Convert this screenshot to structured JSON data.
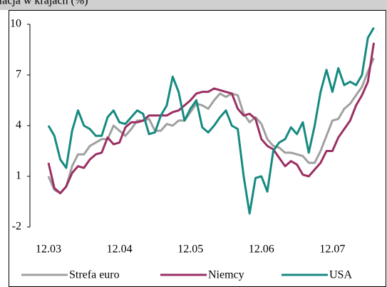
{
  "chart_data": {
    "type": "line",
    "title": "Inflacja w krajach (%)",
    "categories": [
      "12.03",
      null,
      null,
      null,
      null,
      null,
      null,
      null,
      null,
      null,
      null,
      null,
      "12.04",
      null,
      null,
      null,
      null,
      null,
      null,
      null,
      null,
      null,
      null,
      null,
      "12.05",
      null,
      null,
      null,
      null,
      null,
      null,
      null,
      null,
      null,
      null,
      null,
      "12.06",
      null,
      null,
      null,
      null,
      null,
      null,
      null,
      null,
      null,
      null,
      null,
      "12.07",
      null,
      null,
      null,
      null,
      null,
      null,
      null
    ],
    "series": [
      {
        "name": "Strefa euro",
        "color": "#a0a0a0",
        "values": [
          1.0,
          0.2,
          0.0,
          0.4,
          1.6,
          2.3,
          2.3,
          2.8,
          3.0,
          3.2,
          3.2,
          4.0,
          3.7,
          3.4,
          3.8,
          4.3,
          4.3,
          4.4,
          3.7,
          3.7,
          4.1,
          4.0,
          4.3,
          4.3,
          4.8,
          5.3,
          5.2,
          5.0,
          5.5,
          5.9,
          5.7,
          5.9,
          5.8,
          4.7,
          4.2,
          4.5,
          4.1,
          3.2,
          2.8,
          2.7,
          2.4,
          2.4,
          2.3,
          2.2,
          1.8,
          1.8,
          2.5,
          3.4,
          4.3,
          4.4,
          5.0,
          5.3,
          5.8,
          6.3,
          7.2,
          8.0
        ]
      },
      {
        "name": "Niemcy",
        "color": "#9b2f62",
        "values": [
          1.8,
          0.3,
          0.0,
          0.4,
          1.2,
          1.6,
          1.5,
          2.0,
          2.3,
          2.4,
          3.3,
          2.9,
          3.0,
          3.9,
          4.2,
          4.2,
          4.3,
          4.6,
          4.6,
          4.6,
          4.6,
          4.8,
          4.9,
          5.2,
          5.5,
          5.9,
          6.0,
          6.0,
          6.2,
          6.1,
          6.0,
          5.9,
          5.0,
          4.6,
          4.7,
          4.4,
          3.2,
          2.8,
          2.6,
          2.1,
          1.6,
          1.9,
          1.7,
          1.1,
          1.0,
          1.4,
          1.8,
          2.5,
          2.5,
          3.3,
          3.8,
          4.3,
          5.2,
          5.8,
          6.6,
          8.9
        ]
      },
      {
        "name": "USA",
        "color": "#168a80",
        "values": [
          4.0,
          3.4,
          2.0,
          1.5,
          3.7,
          4.9,
          4.0,
          3.8,
          3.4,
          3.4,
          4.5,
          4.9,
          4.2,
          4.1,
          4.5,
          4.9,
          4.7,
          3.5,
          3.6,
          4.6,
          5.2,
          6.9,
          6.0,
          4.3,
          5.0,
          5.5,
          3.9,
          3.6,
          4.0,
          4.5,
          4.9,
          4.0,
          3.8,
          1.0,
          -1.2,
          0.9,
          1.0,
          0.1,
          2.5,
          3.0,
          3.2,
          3.9,
          3.5,
          4.2,
          2.4,
          4.0,
          6.0,
          7.3,
          6.0,
          7.4,
          6.4,
          6.6,
          6.4,
          7.0,
          9.2,
          9.8
        ]
      }
    ],
    "ylim": [
      -2,
      10
    ],
    "yticks": [
      -2,
      1,
      4,
      7,
      10
    ],
    "grid": false,
    "legend": "bottom"
  }
}
